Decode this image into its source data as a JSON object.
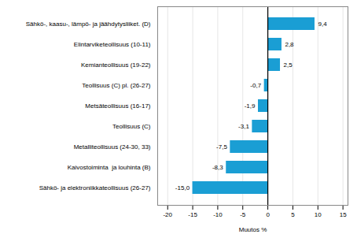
{
  "chart_data": {
    "type": "bar",
    "orientation": "horizontal",
    "categories": [
      "Sähkö- ja elektroniikkateollisuus (26-27)",
      "Kaivostoiminta  ja louhinta (B)",
      "Metalliteollisuus (24-30, 33)",
      "Teollisuus (C)",
      "Metsäteollisuus (16-17)",
      "Teollisuus (C) pl. (26-27)",
      "Kemianteollisuus (19-22)",
      "Elintarviketeollisuus (10-11)",
      "Sähkö-, kaasu-, lämpö- ja jäähdytysliiket. (D)"
    ],
    "values": [
      -15.0,
      -8.3,
      -7.5,
      -3.1,
      -1.9,
      -0.7,
      2.5,
      2.8,
      9.4
    ],
    "value_labels": [
      "-15,0",
      "-8,3",
      "-7,5",
      "-3,1",
      "-1,9",
      "-0,7",
      "2,5",
      "2,8",
      "9,4"
    ],
    "data_labels": true,
    "color": "#1a9ed4",
    "xlabel": "Muutos %",
    "xlim": [
      -22,
      16
    ],
    "xticks": [
      -20,
      -15,
      -10,
      -5,
      0,
      5,
      10,
      15
    ],
    "grid": true
  }
}
